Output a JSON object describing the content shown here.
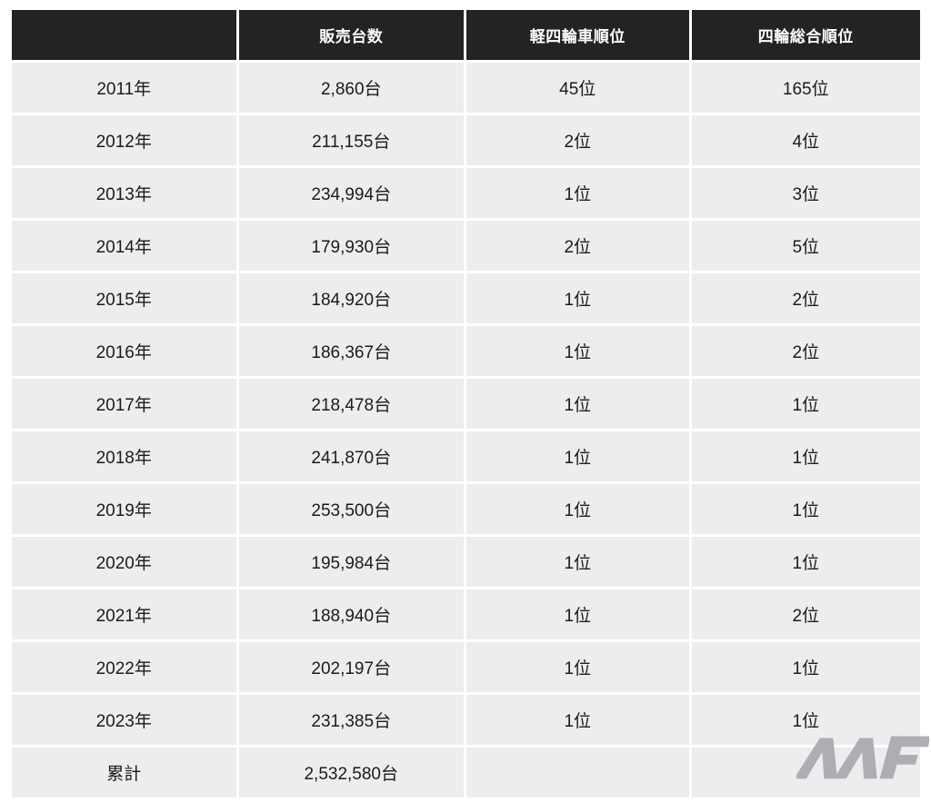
{
  "page": {
    "background": "#ffffff"
  },
  "table": {
    "header": {
      "bg": "#232326",
      "text_color": "#ffffff",
      "columns": [
        "",
        "販売台数",
        "軽四輪車順位",
        "四輪総合順位"
      ]
    },
    "row_bg": "#ecedef",
    "text_color": "#1b1b1d",
    "rows": [
      {
        "label": "2011年",
        "sales": "2,860台",
        "kei_rank": "45位",
        "overall_rank": "165位"
      },
      {
        "label": "2012年",
        "sales": "211,155台",
        "kei_rank": "2位",
        "overall_rank": "4位"
      },
      {
        "label": "2013年",
        "sales": "234,994台",
        "kei_rank": "1位",
        "overall_rank": "3位"
      },
      {
        "label": "2014年",
        "sales": "179,930台",
        "kei_rank": "2位",
        "overall_rank": "5位"
      },
      {
        "label": "2015年",
        "sales": "184,920台",
        "kei_rank": "1位",
        "overall_rank": "2位"
      },
      {
        "label": "2016年",
        "sales": "186,367台",
        "kei_rank": "1位",
        "overall_rank": "2位"
      },
      {
        "label": "2017年",
        "sales": "218,478台",
        "kei_rank": "1位",
        "overall_rank": "1位"
      },
      {
        "label": "2018年",
        "sales": "241,870台",
        "kei_rank": "1位",
        "overall_rank": "1位"
      },
      {
        "label": "2019年",
        "sales": "253,500台",
        "kei_rank": "1位",
        "overall_rank": "1位"
      },
      {
        "label": "2020年",
        "sales": "195,984台",
        "kei_rank": "1位",
        "overall_rank": "1位"
      },
      {
        "label": "2021年",
        "sales": "188,940台",
        "kei_rank": "1位",
        "overall_rank": "2位"
      },
      {
        "label": "2022年",
        "sales": "202,197台",
        "kei_rank": "1位",
        "overall_rank": "1位"
      },
      {
        "label": "2023年",
        "sales": "231,385台",
        "kei_rank": "1位",
        "overall_rank": "1位"
      },
      {
        "label": "累計",
        "sales": "2,532,580台",
        "kei_rank": "",
        "overall_rank": ""
      }
    ]
  },
  "watermark": {
    "label": "MF",
    "color": "#a8a9ac"
  },
  "chart_data": {
    "type": "table",
    "columns": [
      "",
      "販売台数",
      "軽四輪車順位",
      "四輪総合順位"
    ],
    "years": [
      2011,
      2012,
      2013,
      2014,
      2015,
      2016,
      2017,
      2018,
      2019,
      2020,
      2021,
      2022,
      2023
    ],
    "sales_units": [
      2860,
      211155,
      234994,
      179930,
      184920,
      186367,
      218478,
      241870,
      253500,
      195984,
      188940,
      202197,
      231385
    ],
    "kei_rank": [
      45,
      2,
      1,
      2,
      1,
      1,
      1,
      1,
      1,
      1,
      1,
      1,
      1
    ],
    "overall_rank": [
      165,
      4,
      3,
      5,
      2,
      2,
      1,
      1,
      1,
      1,
      2,
      1,
      1
    ],
    "total_row_label": "累計",
    "total_sales_units": 2532580,
    "units_suffix": "台",
    "rank_suffix": "位"
  }
}
